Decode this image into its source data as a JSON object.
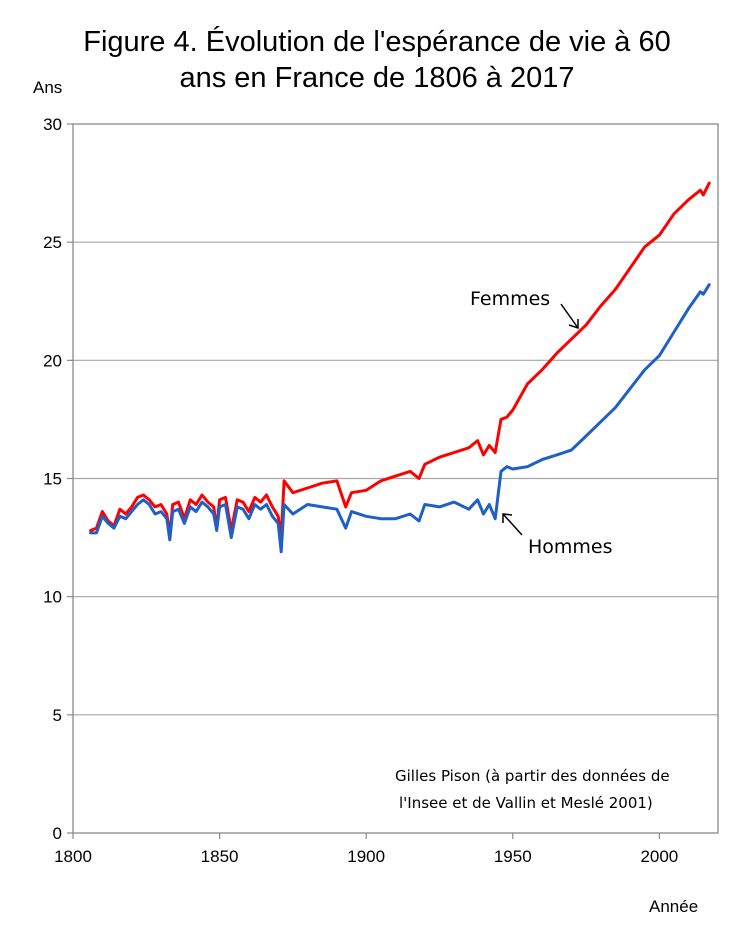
{
  "chart_data": {
    "type": "line",
    "title_line1": "Figure 4. Évolution de l'espérance de vie à 60",
    "title_line2": "ans en France de 1806 à 2017",
    "ylabel": "Ans",
    "xlabel": "Année",
    "xlim": [
      1800,
      2020
    ],
    "ylim": [
      0,
      30
    ],
    "xticks": [
      "1800",
      "1850",
      "1900",
      "1950",
      "2000"
    ],
    "yticks": [
      "0",
      "5",
      "10",
      "15",
      "20",
      "25",
      "30"
    ],
    "grid": "horizontal",
    "colors": {
      "femmes": "#ff0000",
      "hommes": "#1f5fc8"
    },
    "annotations": {
      "femmes": "Femmes",
      "hommes": "Hommes"
    },
    "credit_line1": "Gilles Pison (à partir des données de",
    "credit_line2": "l'Insee et de Vallin et Meslé 2001)",
    "series": [
      {
        "name": "Femmes",
        "x": [
          1806,
          1808,
          1810,
          1812,
          1814,
          1816,
          1818,
          1820,
          1822,
          1824,
          1826,
          1828,
          1830,
          1832,
          1833,
          1834,
          1836,
          1838,
          1840,
          1842,
          1844,
          1846,
          1848,
          1849,
          1850,
          1852,
          1854,
          1856,
          1858,
          1860,
          1862,
          1864,
          1866,
          1868,
          1870,
          1871,
          1872,
          1875,
          1880,
          1885,
          1890,
          1893,
          1895,
          1900,
          1905,
          1910,
          1915,
          1918,
          1920,
          1925,
          1930,
          1935,
          1938,
          1940,
          1942,
          1944,
          1946,
          1948,
          1950,
          1955,
          1960,
          1965,
          1970,
          1975,
          1980,
          1985,
          1990,
          1995,
          2000,
          2005,
          2010,
          2014,
          2015,
          2017
        ],
        "values": [
          12.8,
          12.9,
          13.6,
          13.2,
          13.0,
          13.7,
          13.5,
          13.8,
          14.2,
          14.3,
          14.1,
          13.8,
          13.9,
          13.5,
          12.6,
          13.9,
          14.0,
          13.3,
          14.1,
          13.9,
          14.3,
          14.0,
          13.8,
          12.9,
          14.1,
          14.2,
          12.8,
          14.1,
          14.0,
          13.6,
          14.2,
          14.0,
          14.3,
          13.8,
          13.4,
          12.5,
          14.9,
          14.4,
          14.6,
          14.8,
          14.9,
          13.8,
          14.4,
          14.5,
          14.9,
          15.1,
          15.3,
          15.0,
          15.6,
          15.9,
          16.1,
          16.3,
          16.6,
          16.0,
          16.4,
          16.1,
          17.5,
          17.6,
          17.9,
          19.0,
          19.6,
          20.3,
          20.9,
          21.5,
          22.3,
          23.0,
          23.9,
          24.8,
          25.3,
          26.2,
          26.8,
          27.2,
          27.0,
          27.5
        ]
      },
      {
        "name": "Hommes",
        "x": [
          1806,
          1808,
          1810,
          1812,
          1814,
          1816,
          1818,
          1820,
          1822,
          1824,
          1826,
          1828,
          1830,
          1832,
          1833,
          1834,
          1836,
          1838,
          1840,
          1842,
          1844,
          1846,
          1848,
          1849,
          1850,
          1852,
          1854,
          1856,
          1858,
          1860,
          1862,
          1864,
          1866,
          1868,
          1870,
          1871,
          1872,
          1875,
          1880,
          1885,
          1890,
          1893,
          1895,
          1900,
          1905,
          1910,
          1915,
          1918,
          1920,
          1925,
          1930,
          1935,
          1938,
          1940,
          1942,
          1944,
          1946,
          1948,
          1950,
          1955,
          1960,
          1965,
          1970,
          1975,
          1980,
          1985,
          1990,
          1995,
          2000,
          2005,
          2010,
          2014,
          2015,
          2017
        ],
        "values": [
          12.7,
          12.7,
          13.4,
          13.1,
          12.9,
          13.4,
          13.3,
          13.6,
          13.9,
          14.1,
          13.9,
          13.5,
          13.6,
          13.3,
          12.4,
          13.6,
          13.7,
          13.1,
          13.8,
          13.6,
          14.0,
          13.8,
          13.5,
          12.8,
          13.8,
          13.9,
          12.5,
          13.8,
          13.7,
          13.3,
          13.9,
          13.7,
          13.9,
          13.4,
          13.1,
          11.9,
          13.9,
          13.5,
          13.9,
          13.8,
          13.7,
          12.9,
          13.6,
          13.4,
          13.3,
          13.3,
          13.5,
          13.2,
          13.9,
          13.8,
          14.0,
          13.7,
          14.1,
          13.5,
          13.9,
          13.3,
          15.3,
          15.5,
          15.4,
          15.5,
          15.8,
          16.0,
          16.2,
          16.8,
          17.4,
          18.0,
          18.8,
          19.6,
          20.2,
          21.2,
          22.2,
          22.9,
          22.8,
          23.2
        ]
      }
    ]
  }
}
